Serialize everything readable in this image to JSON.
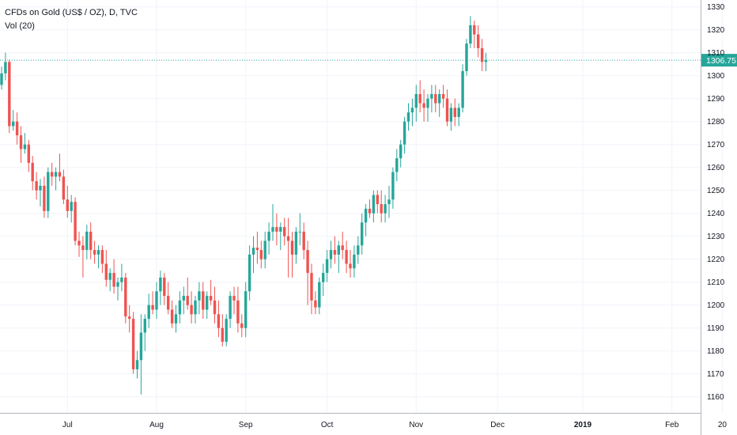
{
  "chart_data": {
    "type": "candlestick",
    "title": "CFDs on Gold (US$ / OZ), D, TVC",
    "subtitle": "Vol (20)",
    "ylim": [
      1153,
      1333
    ],
    "yticks": [
      1160,
      1170,
      1180,
      1190,
      1200,
      1210,
      1220,
      1230,
      1240,
      1250,
      1260,
      1270,
      1280,
      1290,
      1300,
      1310,
      1320,
      1330
    ],
    "x_labels": [
      {
        "label": "Jul",
        "index": 17,
        "bold": false
      },
      {
        "label": "Aug",
        "index": 40,
        "bold": false
      },
      {
        "label": "Sep",
        "index": 63,
        "bold": false
      },
      {
        "label": "Oct",
        "index": 84,
        "bold": false
      },
      {
        "label": "Nov",
        "index": 107,
        "bold": false
      },
      {
        "label": "Dec",
        "index": 128,
        "bold": false
      },
      {
        "label": "2019",
        "index": 150,
        "bold": true
      },
      {
        "label": "Feb",
        "index": 173,
        "bold": false
      },
      {
        "label": "20",
        "index": 186,
        "bold": false
      }
    ],
    "last_price": {
      "value": 1306.75,
      "label": "1306.75"
    },
    "colors": {
      "up": "#26a69a",
      "down": "#ef5350",
      "price_line": "#26a69a",
      "grid": "#f0f3fa",
      "axis": "#b2b5be"
    },
    "grid": true,
    "candles": [
      [
        1296,
        1304,
        1294,
        1301
      ],
      [
        1301,
        1310,
        1298,
        1306
      ],
      [
        1306,
        1307,
        1275,
        1278
      ],
      [
        1278,
        1285,
        1276,
        1280
      ],
      [
        1280,
        1284,
        1270,
        1274
      ],
      [
        1274,
        1278,
        1262,
        1268
      ],
      [
        1268,
        1275,
        1266,
        1270
      ],
      [
        1270,
        1272,
        1258,
        1262
      ],
      [
        1262,
        1265,
        1250,
        1254
      ],
      [
        1254,
        1258,
        1246,
        1250
      ],
      [
        1250,
        1255,
        1243,
        1252
      ],
      [
        1252,
        1256,
        1238,
        1241
      ],
      [
        1241,
        1260,
        1238,
        1258
      ],
      [
        1258,
        1262,
        1252,
        1256
      ],
      [
        1256,
        1260,
        1250,
        1258
      ],
      [
        1258,
        1266,
        1254,
        1256
      ],
      [
        1256,
        1259,
        1244,
        1246
      ],
      [
        1246,
        1252,
        1238,
        1241
      ],
      [
        1241,
        1248,
        1236,
        1245
      ],
      [
        1245,
        1247,
        1226,
        1228
      ],
      [
        1228,
        1232,
        1221,
        1226
      ],
      [
        1226,
        1230,
        1212,
        1224
      ],
      [
        1224,
        1235,
        1220,
        1232
      ],
      [
        1232,
        1236,
        1220,
        1224
      ],
      [
        1224,
        1228,
        1218,
        1222
      ],
      [
        1222,
        1226,
        1216,
        1224
      ],
      [
        1224,
        1226,
        1214,
        1218
      ],
      [
        1218,
        1224,
        1208,
        1211
      ],
      [
        1211,
        1216,
        1206,
        1214
      ],
      [
        1214,
        1220,
        1205,
        1208
      ],
      [
        1208,
        1212,
        1202,
        1210
      ],
      [
        1210,
        1218,
        1206,
        1212
      ],
      [
        1212,
        1214,
        1192,
        1195
      ],
      [
        1195,
        1200,
        1188,
        1194
      ],
      [
        1194,
        1197,
        1170,
        1172
      ],
      [
        1172,
        1180,
        1168,
        1176
      ],
      [
        1176,
        1196,
        1161,
        1188
      ],
      [
        1188,
        1196,
        1180,
        1194
      ],
      [
        1194,
        1205,
        1190,
        1200
      ],
      [
        1200,
        1206,
        1196,
        1198
      ],
      [
        1198,
        1210,
        1194,
        1206
      ],
      [
        1206,
        1215,
        1200,
        1212
      ],
      [
        1212,
        1214,
        1200,
        1204
      ],
      [
        1204,
        1210,
        1196,
        1198
      ],
      [
        1198,
        1202,
        1190,
        1192
      ],
      [
        1192,
        1200,
        1188,
        1196
      ],
      [
        1196,
        1206,
        1192,
        1202
      ],
      [
        1202,
        1208,
        1196,
        1204
      ],
      [
        1204,
        1212,
        1198,
        1200
      ],
      [
        1200,
        1206,
        1192,
        1196
      ],
      [
        1196,
        1204,
        1192,
        1202
      ],
      [
        1202,
        1210,
        1196,
        1206
      ],
      [
        1206,
        1210,
        1194,
        1198
      ],
      [
        1198,
        1206,
        1194,
        1204
      ],
      [
        1204,
        1211,
        1200,
        1202
      ],
      [
        1202,
        1208,
        1192,
        1196
      ],
      [
        1196,
        1202,
        1186,
        1190
      ],
      [
        1190,
        1196,
        1182,
        1184
      ],
      [
        1184,
        1196,
        1182,
        1194
      ],
      [
        1194,
        1206,
        1190,
        1204
      ],
      [
        1204,
        1208,
        1196,
        1202
      ],
      [
        1202,
        1208,
        1188,
        1192
      ],
      [
        1192,
        1196,
        1186,
        1190
      ],
      [
        1190,
        1210,
        1186,
        1206
      ],
      [
        1206,
        1226,
        1202,
        1222
      ],
      [
        1222,
        1230,
        1214,
        1225
      ],
      [
        1225,
        1232,
        1218,
        1224
      ],
      [
        1224,
        1228,
        1216,
        1220
      ],
      [
        1220,
        1232,
        1216,
        1228
      ],
      [
        1228,
        1236,
        1222,
        1232
      ],
      [
        1232,
        1244,
        1228,
        1234
      ],
      [
        1234,
        1240,
        1226,
        1232
      ],
      [
        1232,
        1236,
        1224,
        1234
      ],
      [
        1234,
        1238,
        1226,
        1230
      ],
      [
        1230,
        1238,
        1212,
        1228
      ],
      [
        1228,
        1232,
        1212,
        1222
      ],
      [
        1222,
        1234,
        1218,
        1232
      ],
      [
        1232,
        1240,
        1226,
        1232
      ],
      [
        1232,
        1236,
        1220,
        1224
      ],
      [
        1224,
        1228,
        1200,
        1214
      ],
      [
        1214,
        1218,
        1196,
        1202
      ],
      [
        1202,
        1206,
        1196,
        1199
      ],
      [
        1199,
        1212,
        1196,
        1210
      ],
      [
        1210,
        1218,
        1204,
        1214
      ],
      [
        1214,
        1224,
        1210,
        1220
      ],
      [
        1220,
        1228,
        1216,
        1224
      ],
      [
        1224,
        1230,
        1218,
        1222
      ],
      [
        1222,
        1228,
        1214,
        1226
      ],
      [
        1226,
        1232,
        1220,
        1224
      ],
      [
        1224,
        1228,
        1214,
        1218
      ],
      [
        1218,
        1224,
        1212,
        1216
      ],
      [
        1216,
        1226,
        1212,
        1222
      ],
      [
        1222,
        1230,
        1218,
        1226
      ],
      [
        1226,
        1240,
        1222,
        1236
      ],
      [
        1236,
        1244,
        1230,
        1242
      ],
      [
        1242,
        1246,
        1238,
        1240
      ],
      [
        1240,
        1250,
        1236,
        1248
      ],
      [
        1248,
        1250,
        1240,
        1244
      ],
      [
        1244,
        1250,
        1236,
        1240
      ],
      [
        1240,
        1248,
        1236,
        1244
      ],
      [
        1244,
        1252,
        1238,
        1246
      ],
      [
        1246,
        1260,
        1242,
        1258
      ],
      [
        1258,
        1268,
        1254,
        1264
      ],
      [
        1264,
        1272,
        1260,
        1270
      ],
      [
        1270,
        1282,
        1266,
        1280
      ],
      [
        1280,
        1288,
        1276,
        1284
      ],
      [
        1284,
        1290,
        1278,
        1286
      ],
      [
        1286,
        1296,
        1280,
        1292
      ],
      [
        1292,
        1298,
        1284,
        1288
      ],
      [
        1288,
        1294,
        1280,
        1286
      ],
      [
        1286,
        1292,
        1280,
        1290
      ],
      [
        1290,
        1296,
        1284,
        1292
      ],
      [
        1292,
        1296,
        1284,
        1288
      ],
      [
        1288,
        1294,
        1282,
        1292
      ],
      [
        1292,
        1296,
        1286,
        1290
      ],
      [
        1290,
        1294,
        1278,
        1280
      ],
      [
        1280,
        1288,
        1276,
        1286
      ],
      [
        1286,
        1290,
        1278,
        1282
      ],
      [
        1282,
        1288,
        1278,
        1286
      ],
      [
        1286,
        1305,
        1284,
        1302
      ],
      [
        1302,
        1316,
        1300,
        1314
      ],
      [
        1314,
        1326,
        1312,
        1322
      ],
      [
        1322,
        1324,
        1312,
        1318
      ],
      [
        1318,
        1322,
        1308,
        1312
      ],
      [
        1312,
        1316,
        1302,
        1306
      ],
      [
        1306,
        1310,
        1302,
        1306.75
      ]
    ]
  }
}
